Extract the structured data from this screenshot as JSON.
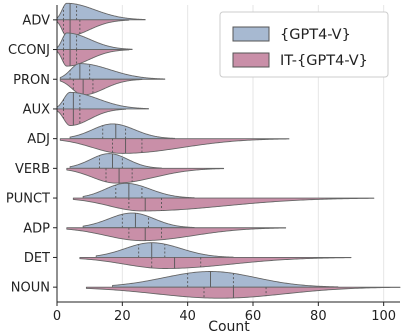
{
  "chart_data": {
    "type": "violin",
    "xlabel": "Count",
    "ylabel": "",
    "xlim": [
      0,
      105
    ],
    "xticks": [
      0,
      20,
      40,
      60,
      80,
      100
    ],
    "grid": "vertical",
    "legend_position": "top-right",
    "series": [
      {
        "name": "{GPT4-V}",
        "color": "#a7b9d1",
        "side": "upper"
      },
      {
        "name": "IT-{GPT4-V}",
        "color": "#c98fa8",
        "side": "lower"
      }
    ],
    "categories": [
      "ADV",
      "CCONJ",
      "PRON",
      "AUX",
      "ADJ",
      "VERB",
      "PUNCT",
      "ADP",
      "DET",
      "NOUN"
    ],
    "distributions": [
      {
        "category": "ADV",
        "upper": {
          "min": 0,
          "max": 27,
          "q1": 2,
          "median": 4,
          "q3": 6,
          "mode": 3,
          "peak": 0.9
        },
        "lower": {
          "min": 0,
          "max": 22,
          "q1": 2,
          "median": 4,
          "q3": 7,
          "mode": 3,
          "peak": 0.9
        }
      },
      {
        "category": "CCONJ",
        "upper": {
          "min": 0,
          "max": 23,
          "q1": 2,
          "median": 4,
          "q3": 6,
          "mode": 3,
          "peak": 0.9
        },
        "lower": {
          "min": 0,
          "max": 22,
          "q1": 2,
          "median": 4,
          "q3": 6,
          "mode": 3,
          "peak": 0.9
        }
      },
      {
        "category": "PRON",
        "upper": {
          "min": 1,
          "max": 33,
          "q1": 4,
          "median": 7,
          "q3": 10,
          "mode": 7,
          "peak": 0.85
        },
        "lower": {
          "min": 1,
          "max": 26,
          "q1": 5,
          "median": 8,
          "q3": 11,
          "mode": 8,
          "peak": 0.85
        }
      },
      {
        "category": "AUX",
        "upper": {
          "min": 0,
          "max": 28,
          "q1": 2,
          "median": 5,
          "q3": 7,
          "mode": 4,
          "peak": 0.9
        },
        "lower": {
          "min": 0,
          "max": 21,
          "q1": 2,
          "median": 5,
          "q3": 7,
          "mode": 4,
          "peak": 0.9
        }
      },
      {
        "category": "ADJ",
        "upper": {
          "min": 4,
          "max": 36,
          "q1": 14,
          "median": 18,
          "q3": 21,
          "mode": 17,
          "peak": 0.8
        },
        "lower": {
          "min": 1,
          "max": 71,
          "q1": 17,
          "median": 21,
          "q3": 26,
          "mode": 20,
          "peak": 0.8
        }
      },
      {
        "category": "VERB",
        "upper": {
          "min": 4,
          "max": 32,
          "q1": 13,
          "median": 17,
          "q3": 20,
          "mode": 16,
          "peak": 0.8
        },
        "lower": {
          "min": 3,
          "max": 51,
          "q1": 15,
          "median": 19,
          "q3": 23,
          "mode": 18,
          "peak": 0.8
        }
      },
      {
        "category": "PUNCT",
        "upper": {
          "min": 8,
          "max": 42,
          "q1": 18,
          "median": 22,
          "q3": 26,
          "mode": 21,
          "peak": 0.8
        },
        "lower": {
          "min": 5,
          "max": 97,
          "q1": 22,
          "median": 27,
          "q3": 32,
          "mode": 26,
          "peak": 0.7
        }
      },
      {
        "category": "ADP",
        "upper": {
          "min": 8,
          "max": 42,
          "q1": 20,
          "median": 24,
          "q3": 28,
          "mode": 23,
          "peak": 0.8
        },
        "lower": {
          "min": 3,
          "max": 70,
          "q1": 22,
          "median": 27,
          "q3": 32,
          "mode": 26,
          "peak": 0.7
        }
      },
      {
        "category": "DET",
        "upper": {
          "min": 12,
          "max": 54,
          "q1": 25,
          "median": 29,
          "q3": 33,
          "mode": 29,
          "peak": 0.8
        },
        "lower": {
          "min": 7,
          "max": 90,
          "q1": 29,
          "median": 36,
          "q3": 44,
          "mode": 33,
          "peak": 0.6
        }
      },
      {
        "category": "NOUN",
        "upper": {
          "min": 17,
          "max": 86,
          "q1": 40,
          "median": 47,
          "q3": 54,
          "mode": 47,
          "peak": 0.85
        },
        "lower": {
          "min": 9,
          "max": 105,
          "q1": 45,
          "median": 54,
          "q3": 64,
          "mode": 50,
          "peak": 0.6
        }
      }
    ]
  }
}
